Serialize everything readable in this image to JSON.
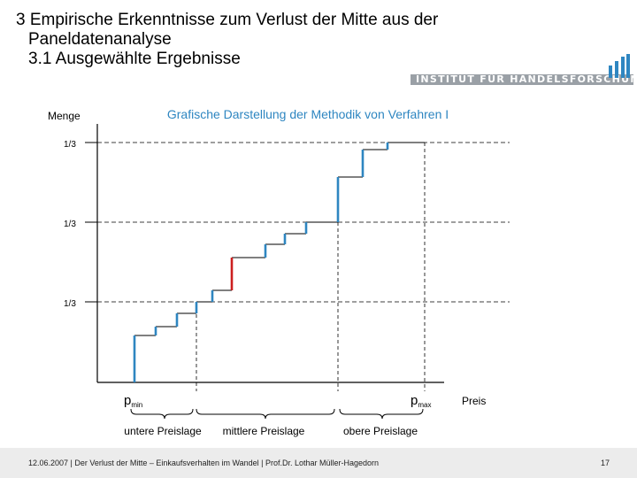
{
  "slide": {
    "title_line1": "3 Empirische Erkenntnisse zum Verlust der Mitte aus der",
    "title_line2": "Paneldatenanalyse",
    "title_line3": "3.1 Ausgewählte Ergebnisse"
  },
  "brand": {
    "text": "INSTITUT FÜR HANDELSFORSCHUNG",
    "bar_color": "#9aa0a6",
    "logo_icon": "bar-chart-logo-icon"
  },
  "diagram": {
    "title": "Grafische Darstellung der Methodik von Verfahren I",
    "y_axis_label": "Menge",
    "x_axis_label": "Preis",
    "y_ticks": [
      "1/3",
      "1/3",
      "1/3"
    ],
    "p_min": {
      "base": "p",
      "sub": "min"
    },
    "p_max": {
      "base": "p",
      "sub": "max"
    },
    "segments": [
      "untere Preislage",
      "mittlere Preislage",
      "obere Preislage"
    ],
    "step_color": "#2e86c1",
    "highlight_color": "#cc1f1f"
  },
  "footer": {
    "text": "12.06.2007 | Der Verlust der Mitte – Einkaufsverhalten im Wandel | Prof.Dr. Lothar Müller-Hagedorn",
    "page_number": "17"
  }
}
